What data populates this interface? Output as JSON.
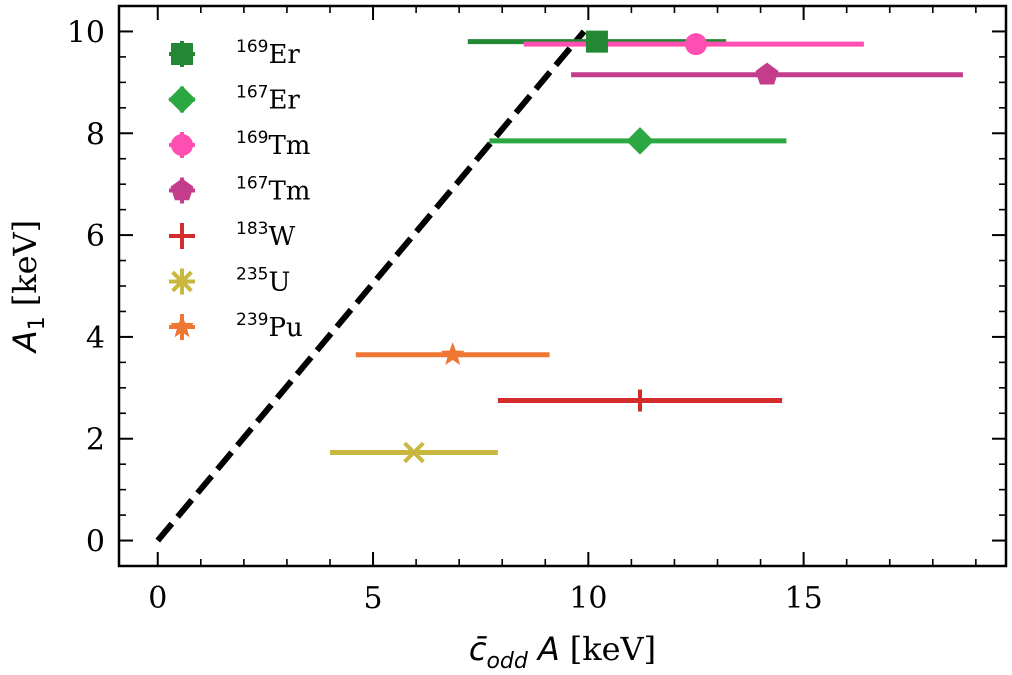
{
  "chart_data": {
    "type": "scatter",
    "xlabel_parts": {
      "base": "c̄",
      "sub": "odd",
      "var": "A",
      "unit": "[keV]"
    },
    "ylabel_parts": {
      "base": "A",
      "sub": "1",
      "unit": "[keV]"
    },
    "xlim": [
      -0.9,
      19.7
    ],
    "ylim": [
      -0.5,
      10.5
    ],
    "x_ticks": [
      0,
      5,
      10,
      15
    ],
    "y_ticks": [
      0,
      2,
      4,
      6,
      8,
      10
    ],
    "x_minor_step": 1,
    "y_minor_step": 0.5,
    "grid": false,
    "legend_position": "top-left",
    "reference_line": {
      "style": "dashed",
      "color": "#000000",
      "x": [
        0,
        9.9
      ],
      "y": [
        0,
        10
      ]
    },
    "series": [
      {
        "name": "Er",
        "mass": "169",
        "color": "#228833",
        "marker": "square",
        "x": 10.2,
        "y": 9.8,
        "xerr_low": 7.2,
        "xerr_high": 13.2
      },
      {
        "name": "Er",
        "mass": "167",
        "color": "#2ca843",
        "marker": "diamond",
        "x": 11.2,
        "y": 7.85,
        "xerr_low": 7.7,
        "xerr_high": 14.6
      },
      {
        "name": "Tm",
        "mass": "169",
        "color": "#ff4fb2",
        "marker": "circle",
        "x": 12.5,
        "y": 9.75,
        "xerr_low": 8.5,
        "xerr_high": 16.4
      },
      {
        "name": "Tm",
        "mass": "167",
        "color": "#c43d8c",
        "marker": "pentagon",
        "x": 14.15,
        "y": 9.15,
        "xerr_low": 9.6,
        "xerr_high": 18.7
      },
      {
        "name": "W",
        "mass": "183",
        "color": "#d42c2c",
        "marker": "plus",
        "x": 11.2,
        "y": 2.75,
        "xerr_low": 7.9,
        "xerr_high": 14.5
      },
      {
        "name": "U",
        "mass": "235",
        "color": "#c9b840",
        "marker": "x",
        "x": 5.95,
        "y": 1.73,
        "xerr_low": 4.0,
        "xerr_high": 7.9
      },
      {
        "name": "Pu",
        "mass": "239",
        "color": "#ee7733",
        "marker": "star",
        "x": 6.85,
        "y": 3.65,
        "xerr_low": 4.6,
        "xerr_high": 9.1
      }
    ]
  }
}
